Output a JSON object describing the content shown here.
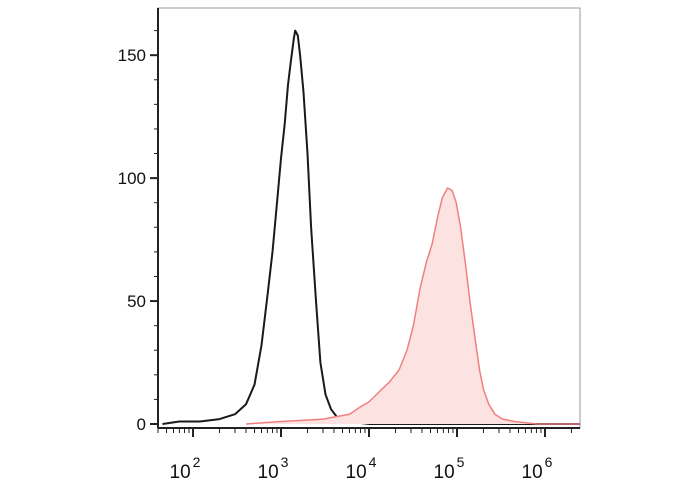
{
  "chart_data": {
    "type": "area",
    "title": "",
    "xlabel": "",
    "ylabel": "",
    "x_scale": "log",
    "xlim": [
      40,
      2500000
    ],
    "ylim": [
      0,
      170
    ],
    "x_ticks": [
      {
        "value": 100,
        "label": "10",
        "exp": "2"
      },
      {
        "value": 1000,
        "label": "10",
        "exp": "3"
      },
      {
        "value": 10000,
        "label": "10",
        "exp": "4"
      },
      {
        "value": 100000,
        "label": "10",
        "exp": "5"
      },
      {
        "value": 1000000,
        "label": "10",
        "exp": "6"
      }
    ],
    "y_ticks": [
      {
        "value": 0,
        "label": "0"
      },
      {
        "value": 50,
        "label": "50"
      },
      {
        "value": 100,
        "label": "100"
      },
      {
        "value": 150,
        "label": "150"
      }
    ],
    "grid": false,
    "legend": "none",
    "series": [
      {
        "color": "#1a1a1a",
        "fill": "none",
        "points": [
          [
            45,
            0
          ],
          [
            70,
            1
          ],
          [
            120,
            1
          ],
          [
            200,
            2
          ],
          [
            300,
            4
          ],
          [
            400,
            8
          ],
          [
            500,
            16
          ],
          [
            600,
            32
          ],
          [
            700,
            52
          ],
          [
            800,
            70
          ],
          [
            900,
            90
          ],
          [
            1000,
            108
          ],
          [
            1100,
            122
          ],
          [
            1200,
            138
          ],
          [
            1300,
            148
          ],
          [
            1400,
            157
          ],
          [
            1450,
            160
          ],
          [
            1550,
            158
          ],
          [
            1650,
            150
          ],
          [
            1800,
            135
          ],
          [
            2000,
            110
          ],
          [
            2200,
            80
          ],
          [
            2500,
            50
          ],
          [
            2800,
            25
          ],
          [
            3200,
            12
          ],
          [
            3700,
            6
          ],
          [
            4500,
            2
          ],
          [
            6000,
            1
          ],
          [
            10000,
            0
          ],
          [
            2500000,
            0
          ]
        ]
      },
      {
        "color": "#f08080",
        "fill": "#fde2e2",
        "points": [
          [
            400,
            0
          ],
          [
            1000,
            1
          ],
          [
            3000,
            2
          ],
          [
            6000,
            4
          ],
          [
            8000,
            7
          ],
          [
            10000,
            9
          ],
          [
            13000,
            13
          ],
          [
            17000,
            17
          ],
          [
            22000,
            22
          ],
          [
            27000,
            30
          ],
          [
            32000,
            40
          ],
          [
            38000,
            55
          ],
          [
            45000,
            66
          ],
          [
            52000,
            73
          ],
          [
            60000,
            84
          ],
          [
            68000,
            92
          ],
          [
            78000,
            96
          ],
          [
            88000,
            95
          ],
          [
            98000,
            90
          ],
          [
            110000,
            80
          ],
          [
            125000,
            65
          ],
          [
            140000,
            50
          ],
          [
            160000,
            35
          ],
          [
            180000,
            22
          ],
          [
            200000,
            14
          ],
          [
            230000,
            8
          ],
          [
            270000,
            4
          ],
          [
            330000,
            2
          ],
          [
            450000,
            1
          ],
          [
            800000,
            0
          ],
          [
            2500000,
            0
          ]
        ]
      }
    ]
  }
}
